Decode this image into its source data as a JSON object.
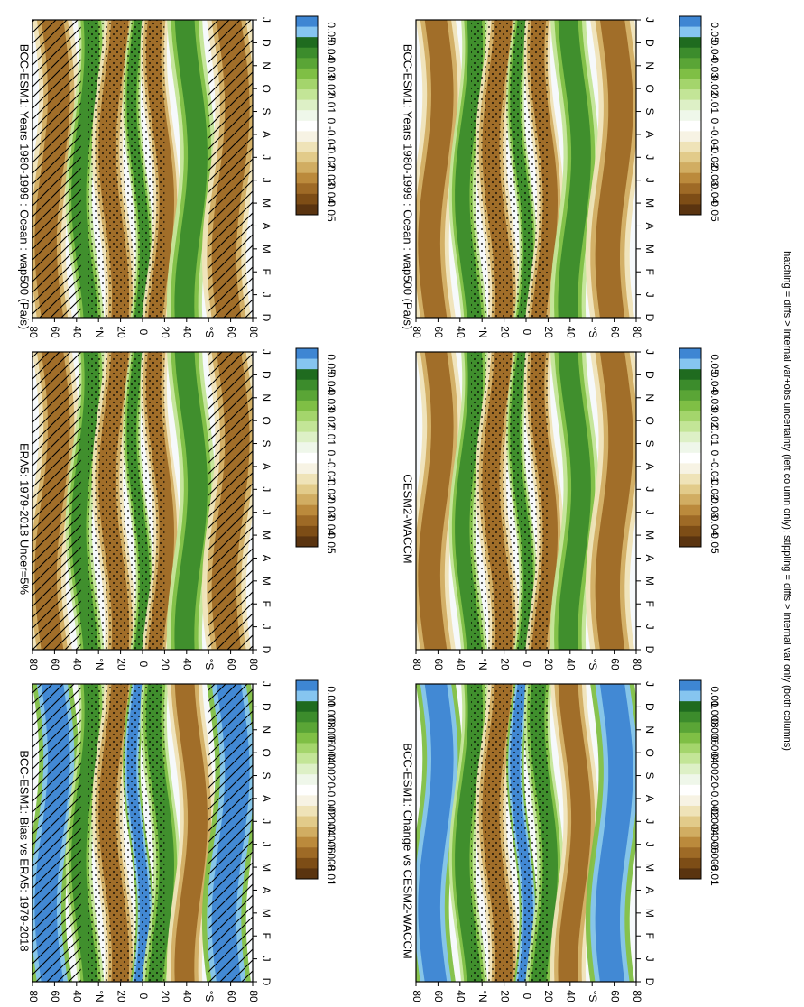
{
  "figure": {
    "footnote": "hatching = diffs > internal var+obs uncertainty (left column only); stippling = diffs > internal var only (both columns)"
  },
  "chart_data": [
    {
      "type": "heatmap",
      "title": "BCC-ESM1: Years 1980-1999 : Ocean : wap500 (Pa/s)",
      "x_tick_labels": [
        "D",
        "J",
        "F",
        "M",
        "A",
        "M",
        "J",
        "J",
        "A",
        "S",
        "O",
        "N",
        "D",
        "J"
      ],
      "y_tick_labels": [
        "80",
        "60",
        "40",
        "°N",
        "20",
        "0",
        "20",
        "40",
        "°S",
        "60",
        "80"
      ],
      "colorbar_labels": [
        "0.05",
        "0.04",
        "0.03",
        "0.02",
        "0.01",
        "0",
        "-0.01",
        "-0.02",
        "-0.03",
        "-0.04",
        "-0.05"
      ],
      "colorbar_levels": [
        0.05,
        0.04,
        0.03,
        0.02,
        0.01,
        0,
        -0.01,
        -0.02,
        -0.03,
        -0.04,
        -0.05
      ],
      "colors": [
        "#3e86d3",
        "#86c5f0",
        "#1f6b1f",
        "#3c8c2c",
        "#5aa536",
        "#7fbf45",
        "#a4d56c",
        "#c3e597",
        "#ddf0c6",
        "#eff7ea",
        "#ffffff",
        "#f7f3e4",
        "#efe3b8",
        "#e2cb8a",
        "#d1ad62",
        "#bb8a3c",
        "#9e6a26",
        "#7d4d16",
        "#5a3410"
      ],
      "hatching": true,
      "stippling": true,
      "signs": [
        "n",
        "p",
        "n",
        "p",
        "n",
        "p",
        "n"
      ]
    },
    {
      "type": "heatmap",
      "title": "BCC-ESM1: Years 1980-1999 : Ocean : wap500 (Pa/s)",
      "x_tick_labels": [
        "D",
        "J",
        "F",
        "M",
        "A",
        "M",
        "J",
        "J",
        "A",
        "S",
        "O",
        "N",
        "D",
        "J"
      ],
      "y_tick_labels": [
        "80",
        "60",
        "40",
        "°N",
        "20",
        "0",
        "20",
        "40",
        "°S",
        "60",
        "80"
      ],
      "colorbar_labels": [
        "0.05",
        "0.04",
        "0.03",
        "0.02",
        "0.01",
        "0",
        "-0.01",
        "-0.02",
        "-0.03",
        "-0.04",
        "-0.05"
      ],
      "colorbar_levels": [
        0.05,
        0.04,
        0.03,
        0.02,
        0.01,
        0,
        -0.01,
        -0.02,
        -0.03,
        -0.04,
        -0.05
      ],
      "colors": [
        "#3e86d3",
        "#86c5f0",
        "#1f6b1f",
        "#3c8c2c",
        "#5aa536",
        "#7fbf45",
        "#a4d56c",
        "#c3e597",
        "#ddf0c6",
        "#eff7ea",
        "#ffffff",
        "#f7f3e4",
        "#efe3b8",
        "#e2cb8a",
        "#d1ad62",
        "#bb8a3c",
        "#9e6a26",
        "#7d4d16",
        "#5a3410"
      ],
      "hatching": false,
      "stippling": true,
      "signs": [
        "n",
        "p",
        "n",
        "p",
        "n",
        "p",
        "n"
      ]
    },
    {
      "type": "heatmap",
      "title": "ERA5: 1979-2018 Uncer=5%",
      "x_tick_labels": [
        "D",
        "J",
        "F",
        "M",
        "A",
        "M",
        "J",
        "J",
        "A",
        "S",
        "O",
        "N",
        "D",
        "J"
      ],
      "y_tick_labels": [
        "80",
        "60",
        "40",
        "°N",
        "20",
        "0",
        "20",
        "40",
        "°S",
        "60",
        "80"
      ],
      "colorbar_labels": [
        "0.05",
        "0.04",
        "0.03",
        "0.02",
        "0.01",
        "0",
        "-0.01",
        "-0.02",
        "-0.03",
        "-0.04",
        "-0.05"
      ],
      "colorbar_levels": [
        0.05,
        0.04,
        0.03,
        0.02,
        0.01,
        0,
        -0.01,
        -0.02,
        -0.03,
        -0.04,
        -0.05
      ],
      "colors": [
        "#3e86d3",
        "#86c5f0",
        "#1f6b1f",
        "#3c8c2c",
        "#5aa536",
        "#7fbf45",
        "#a4d56c",
        "#c3e597",
        "#ddf0c6",
        "#eff7ea",
        "#ffffff",
        "#f7f3e4",
        "#efe3b8",
        "#e2cb8a",
        "#d1ad62",
        "#bb8a3c",
        "#9e6a26",
        "#7d4d16",
        "#5a3410"
      ],
      "hatching": true,
      "stippling": true,
      "signs": [
        "n",
        "p",
        "n",
        "p",
        "n",
        "p",
        "n"
      ]
    },
    {
      "type": "heatmap",
      "title": "CESM2-WACCM",
      "x_tick_labels": [
        "D",
        "J",
        "F",
        "M",
        "A",
        "M",
        "J",
        "J",
        "A",
        "S",
        "O",
        "N",
        "D",
        "J"
      ],
      "y_tick_labels": [
        "80",
        "60",
        "40",
        "°N",
        "20",
        "0",
        "20",
        "40",
        "°S",
        "60",
        "80"
      ],
      "colorbar_labels": [
        "0.05",
        "0.04",
        "0.03",
        "0.02",
        "0.01",
        "0",
        "-0.01",
        "-0.02",
        "-0.03",
        "-0.04",
        "-0.05"
      ],
      "colorbar_levels": [
        0.05,
        0.04,
        0.03,
        0.02,
        0.01,
        0,
        -0.01,
        -0.02,
        -0.03,
        -0.04,
        -0.05
      ],
      "colors": [
        "#3e86d3",
        "#86c5f0",
        "#1f6b1f",
        "#3c8c2c",
        "#5aa536",
        "#7fbf45",
        "#a4d56c",
        "#c3e597",
        "#ddf0c6",
        "#eff7ea",
        "#ffffff",
        "#f7f3e4",
        "#efe3b8",
        "#e2cb8a",
        "#d1ad62",
        "#bb8a3c",
        "#9e6a26",
        "#7d4d16",
        "#5a3410"
      ],
      "hatching": false,
      "stippling": true,
      "signs": [
        "n",
        "p",
        "n",
        "p",
        "n",
        "p",
        "n"
      ]
    },
    {
      "type": "heatmap",
      "title": "BCC-ESM1: Bias vs ERA5: 1979-2018",
      "x_tick_labels": [
        "D",
        "J",
        "F",
        "M",
        "A",
        "M",
        "J",
        "J",
        "A",
        "S",
        "O",
        "N",
        "D",
        "J"
      ],
      "y_tick_labels": [
        "80",
        "60",
        "40",
        "°N",
        "20",
        "0",
        "20",
        "40",
        "°S",
        "60",
        "80"
      ],
      "colorbar_labels": [
        "0.01",
        "0.008",
        "0.006",
        "0.004",
        "0.002",
        "0",
        "-0.002",
        "-0.004",
        "-0.006",
        "-0.008",
        "-0.01"
      ],
      "colorbar_levels": [
        0.01,
        0.008,
        0.006,
        0.004,
        0.002,
        0,
        -0.002,
        -0.004,
        -0.006,
        -0.008,
        -0.01
      ],
      "colors": [
        "#3e86d3",
        "#86c5f0",
        "#1f6b1f",
        "#3c8c2c",
        "#5aa536",
        "#7fbf45",
        "#a4d56c",
        "#c3e597",
        "#ddf0c6",
        "#eff7ea",
        "#ffffff",
        "#f7f3e4",
        "#efe3b8",
        "#e2cb8a",
        "#d1ad62",
        "#bb8a3c",
        "#9e6a26",
        "#7d4d16",
        "#5a3410"
      ],
      "hatching": true,
      "stippling": true,
      "signs": [
        "b",
        "p",
        "n",
        "b",
        "p",
        "n",
        "b"
      ]
    },
    {
      "type": "heatmap",
      "title": "BCC-ESM1: Change vs CESM2-WACCM",
      "x_tick_labels": [
        "D",
        "J",
        "F",
        "M",
        "A",
        "M",
        "J",
        "J",
        "A",
        "S",
        "O",
        "N",
        "D",
        "J"
      ],
      "y_tick_labels": [
        "80",
        "60",
        "40",
        "°N",
        "20",
        "0",
        "20",
        "40",
        "°S",
        "60",
        "80"
      ],
      "colorbar_labels": [
        "0.01",
        "0.008",
        "0.006",
        "0.004",
        "0.002",
        "0",
        "-0.002",
        "-0.004",
        "-0.006",
        "-0.008",
        "-0.01"
      ],
      "colorbar_levels": [
        0.01,
        0.008,
        0.006,
        0.004,
        0.002,
        0,
        -0.002,
        -0.004,
        -0.006,
        -0.008,
        -0.01
      ],
      "colors": [
        "#3e86d3",
        "#86c5f0",
        "#1f6b1f",
        "#3c8c2c",
        "#5aa536",
        "#7fbf45",
        "#a4d56c",
        "#c3e597",
        "#ddf0c6",
        "#eff7ea",
        "#ffffff",
        "#f7f3e4",
        "#efe3b8",
        "#e2cb8a",
        "#d1ad62",
        "#bb8a3c",
        "#9e6a26",
        "#7d4d16",
        "#5a3410"
      ],
      "hatching": false,
      "stippling": true,
      "signs": [
        "b",
        "p",
        "n",
        "b",
        "p",
        "n",
        "b"
      ]
    }
  ]
}
